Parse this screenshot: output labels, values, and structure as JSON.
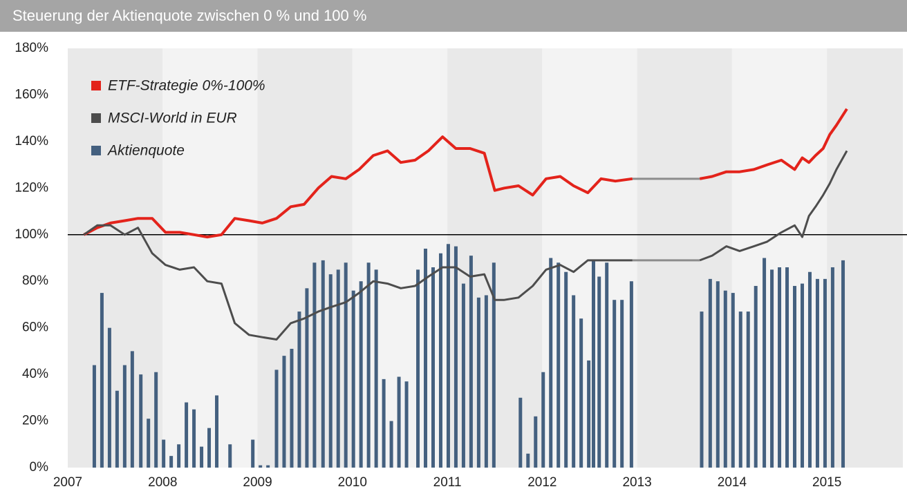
{
  "chart_data": {
    "type": "combo",
    "title": "Steuerung der Aktienquote zwischen 0 % und 100 %",
    "xlim": [
      2007,
      2015.8
    ],
    "xticks": [
      2007,
      2008,
      2009,
      2010,
      2011,
      2012,
      2013,
      2014,
      2015
    ],
    "ylim": [
      0,
      180
    ],
    "yticks": [
      {
        "value": 0,
        "label": "0%"
      },
      {
        "value": 20,
        "label": "20%"
      },
      {
        "value": 40,
        "label": "40%"
      },
      {
        "value": 60,
        "label": "60%"
      },
      {
        "value": 80,
        "label": "80%"
      },
      {
        "value": 100,
        "label": "100%"
      },
      {
        "value": 120,
        "label": "120%"
      },
      {
        "value": 140,
        "label": "140%"
      },
      {
        "value": 160,
        "label": "160%"
      },
      {
        "value": 180,
        "label": "180%"
      }
    ],
    "band_colors": [
      "#e9e9e9",
      "#f3f3f3"
    ],
    "hline": 100,
    "gap_color": "#8c8c8c",
    "legend": "top-left",
    "series": [
      {
        "name": "ETF-Strategie 0%-100%",
        "type": "line",
        "color": "#e3231b",
        "x": [
          2007.17,
          2007.31,
          2007.45,
          2007.6,
          2007.74,
          2007.89,
          2008.03,
          2008.18,
          2008.33,
          2008.47,
          2008.62,
          2008.76,
          2008.91,
          2009.05,
          2009.2,
          2009.35,
          2009.49,
          2009.64,
          2009.78,
          2009.93,
          2010.07,
          2010.22,
          2010.37,
          2010.51,
          2010.66,
          2010.8,
          2010.95,
          2011.09,
          2011.24,
          2011.39,
          2011.5,
          2011.6,
          2011.75,
          2011.9,
          2012.04,
          2012.19,
          2012.33,
          2012.48,
          2012.62,
          2012.77,
          2012.95,
          2013.28,
          2013.66,
          2013.79,
          2013.94,
          2014.08,
          2014.23,
          2014.37,
          2014.52,
          2014.66,
          2014.74,
          2014.81,
          2014.88,
          2014.96,
          2015.03,
          2015.1,
          2015.21
        ],
        "values": [
          100,
          103,
          105,
          106,
          107,
          107,
          101,
          101,
          100,
          99,
          100,
          107,
          106,
          105,
          107,
          112,
          113,
          120,
          125,
          124,
          128,
          134,
          136,
          131,
          132,
          136,
          142,
          137,
          137,
          135,
          119,
          120,
          121,
          117,
          124,
          125,
          121,
          118,
          124,
          123,
          124,
          null,
          124,
          125,
          127,
          127,
          128,
          130,
          132,
          128,
          133,
          131,
          134,
          137,
          143,
          147,
          154
        ]
      },
      {
        "name": "MSCI-World in EUR",
        "type": "line",
        "color": "#4d4d4d",
        "x": [
          2007.17,
          2007.31,
          2007.45,
          2007.6,
          2007.74,
          2007.89,
          2008.03,
          2008.18,
          2008.33,
          2008.47,
          2008.62,
          2008.76,
          2008.91,
          2009.05,
          2009.2,
          2009.35,
          2009.49,
          2009.64,
          2009.78,
          2009.93,
          2010.07,
          2010.22,
          2010.37,
          2010.51,
          2010.66,
          2010.8,
          2010.95,
          2011.09,
          2011.24,
          2011.39,
          2011.5,
          2011.6,
          2011.75,
          2011.9,
          2012.04,
          2012.19,
          2012.33,
          2012.48,
          2012.62,
          2012.77,
          2012.95,
          2013.28,
          2013.66,
          2013.79,
          2013.94,
          2014.08,
          2014.23,
          2014.37,
          2014.52,
          2014.66,
          2014.74,
          2014.81,
          2014.88,
          2014.96,
          2015.03,
          2015.1,
          2015.21
        ],
        "values": [
          100,
          104,
          104,
          100,
          103,
          92,
          87,
          85,
          86,
          80,
          79,
          62,
          57,
          56,
          55,
          62,
          64,
          67,
          69,
          71,
          75,
          80,
          79,
          77,
          78,
          82,
          86,
          86,
          82,
          83,
          72,
          72,
          73,
          78,
          85,
          87,
          84,
          89,
          89,
          89,
          89,
          null,
          89,
          91,
          95,
          93,
          95,
          97,
          101,
          104,
          99,
          108,
          112,
          117,
          122,
          128,
          136
        ]
      },
      {
        "name": "Aktienquote",
        "type": "bar",
        "color": "#44607f",
        "x": [
          2007.28,
          2007.36,
          2007.44,
          2007.52,
          2007.6,
          2007.68,
          2007.77,
          2007.85,
          2007.93,
          2008.01,
          2008.09,
          2008.17,
          2008.25,
          2008.33,
          2008.41,
          2008.49,
          2008.57,
          2008.71,
          2008.95,
          2009.03,
          2009.11,
          2009.2,
          2009.28,
          2009.36,
          2009.44,
          2009.52,
          2009.6,
          2009.69,
          2009.77,
          2009.85,
          2009.93,
          2010.01,
          2010.09,
          2010.17,
          2010.25,
          2010.33,
          2010.41,
          2010.49,
          2010.57,
          2010.69,
          2010.77,
          2010.85,
          2010.93,
          2011.01,
          2011.09,
          2011.17,
          2011.25,
          2011.33,
          2011.41,
          2011.49,
          2011.77,
          2011.85,
          2011.93,
          2012.01,
          2012.09,
          2012.17,
          2012.25,
          2012.33,
          2012.41,
          2012.49,
          2012.54,
          2012.6,
          2012.68,
          2012.76,
          2012.84,
          2012.94,
          2013.68,
          2013.77,
          2013.85,
          2013.93,
          2014.01,
          2014.09,
          2014.17,
          2014.25,
          2014.34,
          2014.42,
          2014.5,
          2014.58,
          2014.66,
          2014.74,
          2014.82,
          2014.9,
          2014.98,
          2015.06,
          2015.17
        ],
        "values": [
          44,
          75,
          60,
          33,
          44,
          50,
          40,
          21,
          41,
          12,
          5,
          10,
          28,
          25,
          9,
          17,
          31,
          10,
          12,
          1,
          1,
          42,
          48,
          51,
          67,
          77,
          88,
          89,
          83,
          85,
          88,
          76,
          80,
          88,
          85,
          38,
          20,
          39,
          37,
          85,
          94,
          86,
          92,
          96,
          95,
          79,
          91,
          73,
          74,
          88,
          30,
          6,
          22,
          41,
          90,
          88,
          84,
          74,
          64,
          46,
          89,
          82,
          88,
          72,
          72,
          80,
          67,
          81,
          80,
          76,
          75,
          67,
          67,
          78,
          90,
          85,
          86,
          86,
          78,
          79,
          84,
          81,
          81,
          86,
          89
        ]
      }
    ]
  }
}
